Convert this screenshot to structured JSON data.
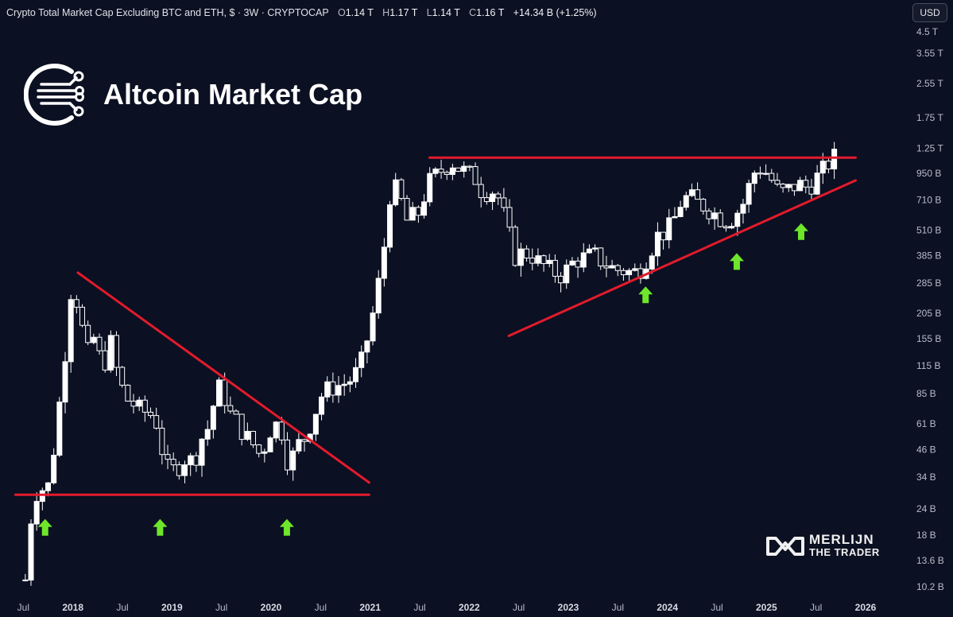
{
  "header": {
    "title": "Crypto Total Market Cap Excluding BTC and ETH, $ · 3W · CRYPTOCAP",
    "o_label": "O",
    "o_value": "1.14 T",
    "h_label": "H",
    "h_value": "1.17 T",
    "l_label": "L",
    "l_value": "1.14 T",
    "c_label": "C",
    "c_value": "1.16 T",
    "change": "+14.34 B (+1.25%)"
  },
  "currency_button": "USD",
  "brand": {
    "title": "Altcoin Market Cap",
    "icon": "circuit-logo-icon"
  },
  "watermark": {
    "line1": "MERLIJN",
    "line2": "THE TRADER",
    "icon": "infinity-logo-icon"
  },
  "colors": {
    "background": "#0b1022",
    "candle": "#ffffff",
    "trendline": "#e21b2c",
    "arrow": "#6ee62b"
  },
  "chart_data": {
    "type": "candlestick",
    "title": "Crypto Total Market Cap Excluding BTC and ETH, $ · 3W · CRYPTOCAP",
    "y_scale": "log",
    "y_unit": "USD",
    "y_ticks": [
      "10.2 B",
      "13.6 B",
      "18 B",
      "24 B",
      "34 B",
      "46 B",
      "61 B",
      "85 B",
      "115 B",
      "155 B",
      "205 B",
      "285 B",
      "385 B",
      "510 B",
      "710 B",
      "950 B",
      "1.25 T",
      "1.75 T",
      "2.55 T",
      "3.55 T",
      "4.5 T"
    ],
    "y_tick_values": [
      10.2,
      13.6,
      18,
      24,
      34,
      46,
      61,
      85,
      115,
      155,
      205,
      285,
      385,
      510,
      710,
      950,
      1250,
      1750,
      2550,
      3550,
      4500
    ],
    "x_ticks": [
      {
        "label": "Jul",
        "t": 2017.5,
        "year": false
      },
      {
        "label": "2018",
        "t": 2018.0,
        "year": true
      },
      {
        "label": "Jul",
        "t": 2018.5,
        "year": false
      },
      {
        "label": "2019",
        "t": 2019.0,
        "year": true
      },
      {
        "label": "Jul",
        "t": 2019.5,
        "year": false
      },
      {
        "label": "2020",
        "t": 2020.0,
        "year": true
      },
      {
        "label": "Jul",
        "t": 2020.5,
        "year": false
      },
      {
        "label": "2021",
        "t": 2021.0,
        "year": true
      },
      {
        "label": "Jul",
        "t": 2021.5,
        "year": false
      },
      {
        "label": "2022",
        "t": 2022.0,
        "year": true
      },
      {
        "label": "Jul",
        "t": 2022.5,
        "year": false
      },
      {
        "label": "2023",
        "t": 2023.0,
        "year": true
      },
      {
        "label": "Jul",
        "t": 2023.5,
        "year": false
      },
      {
        "label": "2024",
        "t": 2024.0,
        "year": true
      },
      {
        "label": "Jul",
        "t": 2024.5,
        "year": false
      },
      {
        "label": "2025",
        "t": 2025.0,
        "year": true
      },
      {
        "label": "Jul",
        "t": 2025.5,
        "year": false
      },
      {
        "label": "2026",
        "t": 2026.0,
        "year": true
      }
    ],
    "price_path_billions": [
      [
        2017.52,
        11
      ],
      [
        2017.6,
        28
      ],
      [
        2017.7,
        30
      ],
      [
        2017.76,
        31
      ],
      [
        2017.84,
        60
      ],
      [
        2017.92,
        130
      ],
      [
        2017.98,
        260
      ],
      [
        2018.05,
        230
      ],
      [
        2018.14,
        130
      ],
      [
        2018.22,
        160
      ],
      [
        2018.3,
        110
      ],
      [
        2018.38,
        150
      ],
      [
        2018.46,
        100
      ],
      [
        2018.54,
        80
      ],
      [
        2018.62,
        75
      ],
      [
        2018.7,
        70
      ],
      [
        2018.78,
        68
      ],
      [
        2018.86,
        60
      ],
      [
        2018.92,
        40
      ],
      [
        2018.98,
        36
      ],
      [
        2019.06,
        38
      ],
      [
        2019.14,
        42
      ],
      [
        2019.22,
        40
      ],
      [
        2019.3,
        52
      ],
      [
        2019.38,
        60
      ],
      [
        2019.44,
        85
      ],
      [
        2019.5,
        95
      ],
      [
        2019.56,
        70
      ],
      [
        2019.64,
        64
      ],
      [
        2019.72,
        55
      ],
      [
        2019.8,
        50
      ],
      [
        2019.88,
        44
      ],
      [
        2019.94,
        48
      ],
      [
        2020.02,
        62
      ],
      [
        2020.1,
        58
      ],
      [
        2020.18,
        38
      ],
      [
        2020.26,
        48
      ],
      [
        2020.34,
        52
      ],
      [
        2020.42,
        64
      ],
      [
        2020.5,
        82
      ],
      [
        2020.58,
        90
      ],
      [
        2020.66,
        92
      ],
      [
        2020.74,
        95
      ],
      [
        2020.82,
        100
      ],
      [
        2020.9,
        115
      ],
      [
        2020.98,
        160
      ],
      [
        2021.06,
        240
      ],
      [
        2021.14,
        420
      ],
      [
        2021.2,
        750
      ],
      [
        2021.28,
        820
      ],
      [
        2021.36,
        560
      ],
      [
        2021.44,
        600
      ],
      [
        2021.5,
        620
      ],
      [
        2021.58,
        850
      ],
      [
        2021.66,
        930
      ],
      [
        2021.74,
        1000
      ],
      [
        2021.82,
        1080
      ],
      [
        2021.9,
        1000
      ],
      [
        2021.98,
        960
      ],
      [
        2022.06,
        900
      ],
      [
        2022.14,
        760
      ],
      [
        2022.22,
        800
      ],
      [
        2022.3,
        720
      ],
      [
        2022.38,
        540
      ],
      [
        2022.46,
        380
      ],
      [
        2022.54,
        400
      ],
      [
        2022.62,
        390
      ],
      [
        2022.7,
        360
      ],
      [
        2022.78,
        340
      ],
      [
        2022.86,
        320
      ],
      [
        2022.94,
        310
      ],
      [
        2023.02,
        350
      ],
      [
        2023.1,
        370
      ],
      [
        2023.18,
        380
      ],
      [
        2023.26,
        390
      ],
      [
        2023.34,
        360
      ],
      [
        2023.42,
        340
      ],
      [
        2023.5,
        330
      ],
      [
        2023.58,
        325
      ],
      [
        2023.66,
        320
      ],
      [
        2023.74,
        340
      ],
      [
        2023.82,
        400
      ],
      [
        2023.9,
        480
      ],
      [
        2023.98,
        500
      ],
      [
        2024.06,
        560
      ],
      [
        2024.14,
        700
      ],
      [
        2024.22,
        740
      ],
      [
        2024.3,
        690
      ],
      [
        2024.38,
        660
      ],
      [
        2024.46,
        620
      ],
      [
        2024.54,
        580
      ],
      [
        2024.62,
        560
      ],
      [
        2024.7,
        620
      ],
      [
        2024.78,
        700
      ],
      [
        2024.86,
        950
      ],
      [
        2024.94,
        1000
      ],
      [
        2025.02,
        940
      ],
      [
        2025.1,
        800
      ],
      [
        2025.18,
        770
      ],
      [
        2025.26,
        820
      ],
      [
        2025.34,
        840
      ],
      [
        2025.42,
        810
      ],
      [
        2025.5,
        900
      ],
      [
        2025.58,
        1000
      ],
      [
        2025.64,
        1080
      ],
      [
        2025.7,
        1160
      ]
    ],
    "resistance_trendline": [
      [
        2018.05,
        320
      ],
      [
        2019.5,
        103
      ],
      [
        2020.99,
        32
      ]
    ],
    "support_trendline_left": [
      [
        2017.42,
        28
      ],
      [
        2020.99,
        28
      ]
    ],
    "resistance_trendline_right": [
      [
        2021.6,
        1130
      ],
      [
        2025.9,
        1130
      ]
    ],
    "support_trendline_right": [
      [
        2022.4,
        160
      ],
      [
        2025.9,
        880
      ]
    ],
    "arrows": [
      {
        "t": 2017.72,
        "v": 19.5
      },
      {
        "t": 2018.88,
        "v": 19.5
      },
      {
        "t": 2020.16,
        "v": 19.5
      },
      {
        "t": 2023.78,
        "v": 250
      },
      {
        "t": 2024.7,
        "v": 360
      },
      {
        "t": 2025.35,
        "v": 500
      }
    ]
  }
}
